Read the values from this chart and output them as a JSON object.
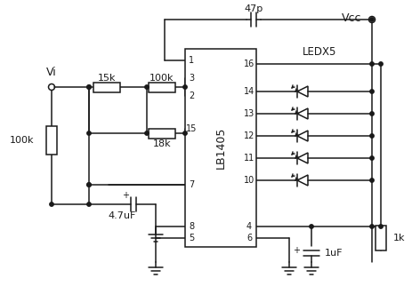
{
  "bg_color": "#ffffff",
  "line_color": "#1a1a1a",
  "line_width": 1.1,
  "ic_label": "LB1405",
  "vcc_label": "Vcc",
  "vi_label": "Vi",
  "cap47p_label": "47p",
  "cap47uF_label": "4.7uF",
  "cap1uF_label": "1uF",
  "res15k_label": "15k",
  "res100k_right_label": "100k",
  "res18k_label": "18k",
  "res100k_left_label": "100k",
  "res1k_label": "1k",
  "ledx5_label": "LEDX5"
}
